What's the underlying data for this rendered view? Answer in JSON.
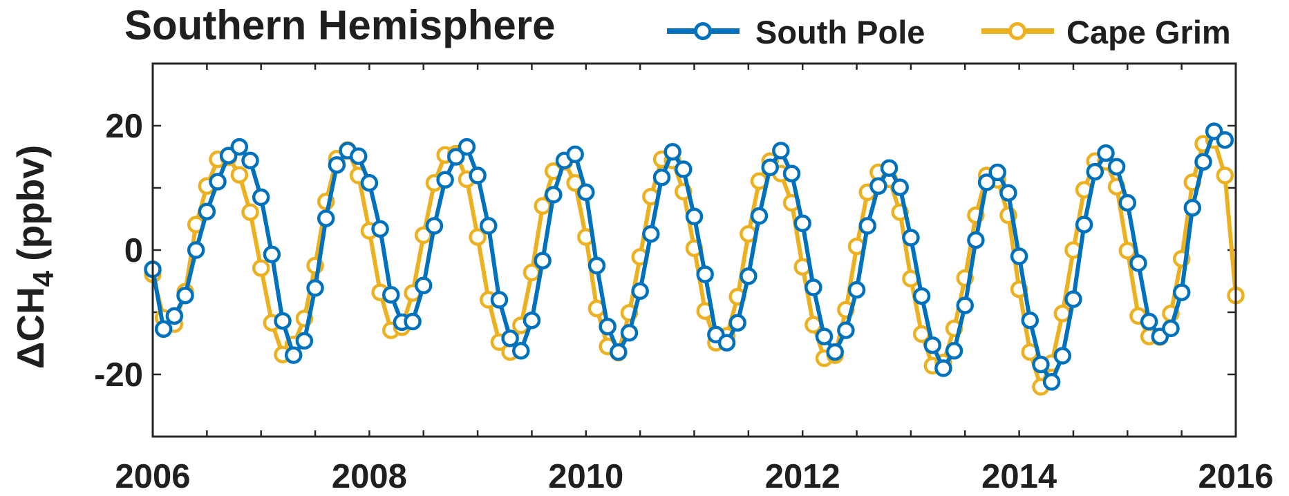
{
  "chart_data": {
    "type": "line",
    "title": "Southern Hemisphere",
    "xlabel": "",
    "ylabel": "ΔCH",
    "ylabel_subscript": "4",
    "ylabel_unit": "(ppbv)",
    "xlim": [
      2006,
      2016
    ],
    "ylim": [
      -30,
      30
    ],
    "x_ticks": [
      "2006",
      "2008",
      "2010",
      "2012",
      "2014",
      "2016"
    ],
    "y_ticks": [
      "20",
      "0",
      "-20"
    ],
    "grid": false,
    "legend_position": "top-right",
    "markers": "open-circle",
    "series": [
      {
        "name": "South Pole",
        "color": "#0072BD",
        "x": [
          2006.0,
          2006.1,
          2006.2,
          2006.3,
          2006.4,
          2006.5,
          2006.6,
          2006.7,
          2006.8,
          2006.9,
          2007.0,
          2007.1,
          2007.2,
          2007.3,
          2007.4,
          2007.5,
          2007.6,
          2007.7,
          2007.8,
          2007.9,
          2008.0,
          2008.1,
          2008.2,
          2008.3,
          2008.4,
          2008.5,
          2008.6,
          2008.7,
          2008.8,
          2008.9,
          2009.0,
          2009.1,
          2009.2,
          2009.3,
          2009.4,
          2009.5,
          2009.6,
          2009.7,
          2009.8,
          2009.9,
          2010.0,
          2010.1,
          2010.2,
          2010.3,
          2010.4,
          2010.5,
          2010.6,
          2010.7,
          2010.8,
          2010.9,
          2011.0,
          2011.1,
          2011.2,
          2011.3,
          2011.4,
          2011.5,
          2011.6,
          2011.7,
          2011.8,
          2011.9,
          2012.0,
          2012.1,
          2012.2,
          2012.3,
          2012.4,
          2012.5,
          2012.6,
          2012.7,
          2012.8,
          2012.9,
          2013.0,
          2013.1,
          2013.2,
          2013.3,
          2013.4,
          2013.5,
          2013.6,
          2013.7,
          2013.8,
          2013.9,
          2014.0,
          2014.1,
          2014.2,
          2014.3,
          2014.4,
          2014.5,
          2014.6,
          2014.7,
          2014.8,
          2014.9,
          2015.0,
          2015.1,
          2015.2,
          2015.3,
          2015.4,
          2015.5,
          2015.6,
          2015.7,
          2015.8,
          2015.9
        ],
        "values": [
          -3.1,
          -12.7,
          -10.6,
          -7.3,
          0.0,
          6.2,
          11.0,
          15.2,
          16.6,
          14.4,
          8.5,
          -0.7,
          -11.4,
          -16.9,
          -14.6,
          -6.1,
          5.1,
          13.7,
          16.0,
          15.1,
          10.8,
          3.4,
          -7.2,
          -11.6,
          -11.5,
          -5.7,
          3.9,
          11.3,
          15.0,
          16.6,
          12.0,
          3.9,
          -8.0,
          -14.2,
          -16.2,
          -11.3,
          -1.7,
          8.9,
          14.4,
          15.4,
          9.3,
          -2.5,
          -12.3,
          -16.4,
          -13.3,
          -6.6,
          2.6,
          11.7,
          15.8,
          13.0,
          5.4,
          -3.9,
          -13.6,
          -14.9,
          -11.7,
          -4.2,
          5.5,
          13.3,
          16.0,
          12.3,
          4.3,
          -6.0,
          -13.9,
          -16.4,
          -12.9,
          -6.4,
          3.9,
          10.3,
          13.2,
          10.1,
          2.0,
          -7.4,
          -15.3,
          -19.0,
          -16.2,
          -8.9,
          1.6,
          10.9,
          12.5,
          9.2,
          -1.0,
          -11.3,
          -18.4,
          -21.2,
          -17.0,
          -7.9,
          4.1,
          12.6,
          15.6,
          13.4,
          7.6,
          -2.1,
          -11.5,
          -13.9,
          -12.6,
          -6.8,
          6.8,
          14.2,
          19.1,
          17.7
        ]
      },
      {
        "name": "Cape Grim",
        "color": "#EDB120",
        "x": [
          2006.0,
          2006.1,
          2006.2,
          2006.3,
          2006.4,
          2006.5,
          2006.6,
          2006.7,
          2006.8,
          2006.9,
          2007.0,
          2007.1,
          2007.2,
          2007.3,
          2007.4,
          2007.5,
          2007.6,
          2007.7,
          2007.8,
          2007.9,
          2008.0,
          2008.1,
          2008.2,
          2008.3,
          2008.4,
          2008.5,
          2008.6,
          2008.7,
          2008.8,
          2008.9,
          2009.0,
          2009.1,
          2009.2,
          2009.3,
          2009.4,
          2009.5,
          2009.6,
          2009.7,
          2009.8,
          2009.9,
          2010.0,
          2010.1,
          2010.2,
          2010.3,
          2010.4,
          2010.5,
          2010.6,
          2010.7,
          2010.8,
          2010.9,
          2011.0,
          2011.1,
          2011.2,
          2011.3,
          2011.4,
          2011.5,
          2011.6,
          2011.7,
          2011.8,
          2011.9,
          2012.0,
          2012.1,
          2012.2,
          2012.3,
          2012.4,
          2012.5,
          2012.6,
          2012.7,
          2012.8,
          2012.9,
          2013.0,
          2013.1,
          2013.2,
          2013.3,
          2013.4,
          2013.5,
          2013.6,
          2013.7,
          2013.8,
          2013.9,
          2014.0,
          2014.1,
          2014.2,
          2014.3,
          2014.4,
          2014.5,
          2014.6,
          2014.7,
          2014.8,
          2014.9,
          2015.0,
          2015.1,
          2015.2,
          2015.3,
          2015.4,
          2015.5,
          2015.6,
          2015.7,
          2015.8,
          2015.9,
          2016.0
        ],
        "values": [
          -3.9,
          -10.9,
          -11.9,
          -6.7,
          4.1,
          10.3,
          14.6,
          14.9,
          12.1,
          6.1,
          -2.9,
          -11.7,
          -16.8,
          -15.2,
          -11.0,
          -2.5,
          7.8,
          14.7,
          16.1,
          12.0,
          3.1,
          -6.8,
          -12.9,
          -12.4,
          -6.9,
          2.4,
          10.8,
          15.3,
          15.5,
          11.4,
          2.1,
          -8.0,
          -14.8,
          -16.4,
          -12.1,
          -3.6,
          7.1,
          12.7,
          14.2,
          10.8,
          2.1,
          -9.4,
          -15.5,
          -16.5,
          -10.1,
          -1.1,
          8.6,
          14.6,
          14.4,
          9.4,
          0.3,
          -9.8,
          -14.9,
          -13.8,
          -7.5,
          2.6,
          11.1,
          14.3,
          12.3,
          7.6,
          -2.7,
          -12.0,
          -17.4,
          -16.9,
          -9.6,
          0.6,
          9.3,
          12.5,
          11.4,
          6.1,
          -4.6,
          -13.5,
          -18.6,
          -18.1,
          -12.6,
          -4.5,
          5.6,
          12.0,
          11.3,
          5.6,
          -6.3,
          -16.4,
          -22.0,
          -18.2,
          -10.2,
          0.0,
          9.7,
          14.3,
          14.2,
          10.2,
          -0.1,
          -10.6,
          -13.9,
          -14.0,
          -10.2,
          -1.4,
          10.9,
          17.1,
          17.7,
          12.0,
          -7.3
        ]
      }
    ]
  }
}
